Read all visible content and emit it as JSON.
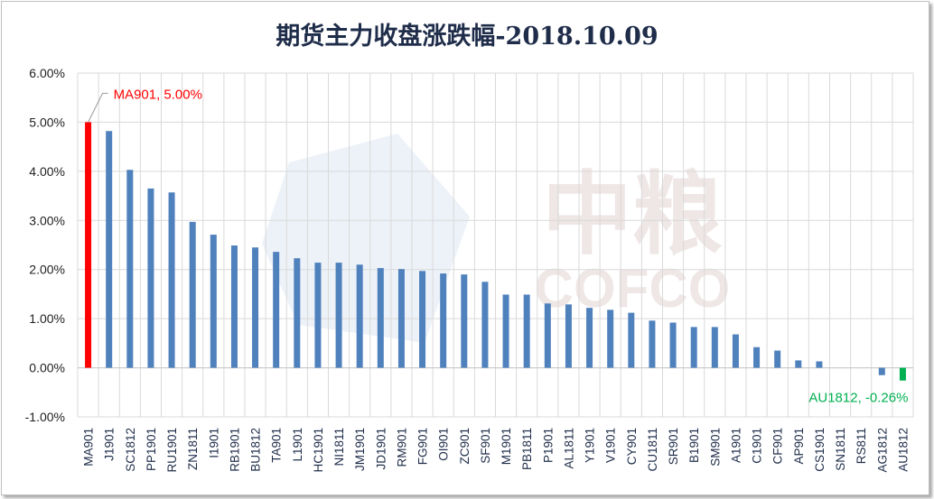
{
  "chart_data": {
    "type": "bar",
    "title": "期货主力收盘涨跌幅-2018.10.09",
    "xlabel": "",
    "ylabel": "",
    "ylim": [
      -1,
      6
    ],
    "yticks": [
      -1,
      0,
      1,
      2,
      3,
      4,
      5,
      6
    ],
    "ytick_labels": [
      "-1.00%",
      "0.00%",
      "1.00%",
      "2.00%",
      "3.00%",
      "4.00%",
      "5.00%",
      "6.00%"
    ],
    "grid": true,
    "categories": [
      "MA901",
      "J1901",
      "SC1812",
      "PP1901",
      "RU1901",
      "ZN1811",
      "I1901",
      "RB1901",
      "BU1812",
      "TA901",
      "L1901",
      "HC1901",
      "NI1811",
      "JM1901",
      "JD1901",
      "RM901",
      "FG901",
      "OI901",
      "ZC901",
      "SF901",
      "M1901",
      "PB1811",
      "P1901",
      "AL1811",
      "Y1901",
      "V1901",
      "CY901",
      "CU1811",
      "SR901",
      "B1901",
      "SM901",
      "A1901",
      "C1901",
      "CF901",
      "AP901",
      "CS1901",
      "SN1811",
      "RS811",
      "AG1812",
      "AU1812"
    ],
    "values": [
      5.0,
      4.82,
      4.03,
      3.65,
      3.57,
      2.97,
      2.71,
      2.49,
      2.45,
      2.36,
      2.23,
      2.14,
      2.14,
      2.1,
      2.03,
      2.01,
      1.97,
      1.92,
      1.9,
      1.75,
      1.49,
      1.49,
      1.31,
      1.29,
      1.22,
      1.18,
      1.12,
      0.96,
      0.92,
      0.83,
      0.83,
      0.68,
      0.42,
      0.35,
      0.15,
      0.13,
      0,
      0,
      -0.15,
      -0.26
    ],
    "colors": {
      "default": "#4f81bd",
      "max": "#ff0000",
      "min": "#00b050"
    },
    "annotations": [
      {
        "text": "MA901, 5.00%",
        "category": "MA901",
        "color": "#ff0000"
      },
      {
        "text": "AU1812, -0.26%",
        "category": "AU1812",
        "color": "#00b050"
      }
    ],
    "watermark": "中粮 COFCO"
  }
}
